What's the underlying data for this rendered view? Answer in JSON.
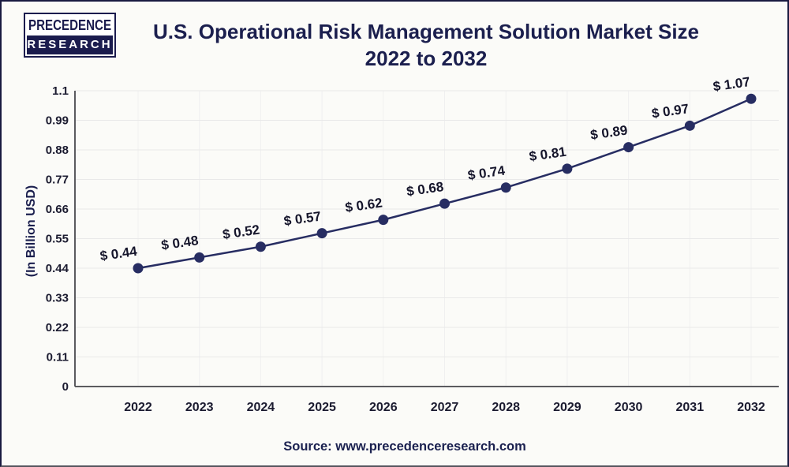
{
  "brand": {
    "top": "PRECEDENCE",
    "bottom": "RESEARCH"
  },
  "header": {
    "title_line1": "U.S. Operational Risk Management Solution Market Size",
    "title_line2": "2022 to 2032"
  },
  "footer": {
    "source": "Source: www.precedenceresearch.com"
  },
  "chart_data": {
    "type": "line",
    "title": "U.S. Operational Risk Management Solution Market Size 2022 to 2032",
    "xlabel": "",
    "ylabel": "(In Billion USD)",
    "categories": [
      "2022",
      "2023",
      "2024",
      "2025",
      "2026",
      "2027",
      "2028",
      "2029",
      "2030",
      "2031",
      "2032"
    ],
    "values": [
      0.44,
      0.48,
      0.52,
      0.57,
      0.62,
      0.68,
      0.74,
      0.81,
      0.89,
      0.97,
      1.07
    ],
    "data_labels": [
      "$ 0.44",
      "$ 0.48",
      "$ 0.52",
      "$ 0.57",
      "$ 0.62",
      "$ 0.68",
      "$ 0.74",
      "$ 0.81",
      "$ 0.89",
      "$ 0.97",
      "$ 1.07"
    ],
    "ylim": [
      0,
      1.1
    ],
    "yticks": [
      0,
      0.11,
      0.22,
      0.33,
      0.44,
      0.55,
      0.66,
      0.77,
      0.88,
      0.99,
      1.1
    ],
    "ytick_labels": [
      "0",
      "0.11",
      "0.22",
      "0.33",
      "0.44",
      "0.55",
      "0.66",
      "0.77",
      "0.88",
      "0.99",
      "1.1"
    ],
    "grid": true,
    "legend": false,
    "colors": {
      "line": "#272d62",
      "marker": "#272d62",
      "title": "#1b1f4e",
      "tick_text": "#1b1b30",
      "data_label_text": "#15152b",
      "grid_h": "#e9e9e9",
      "grid_v": "#f0f0f0",
      "axis": "#5b5b5f"
    }
  }
}
